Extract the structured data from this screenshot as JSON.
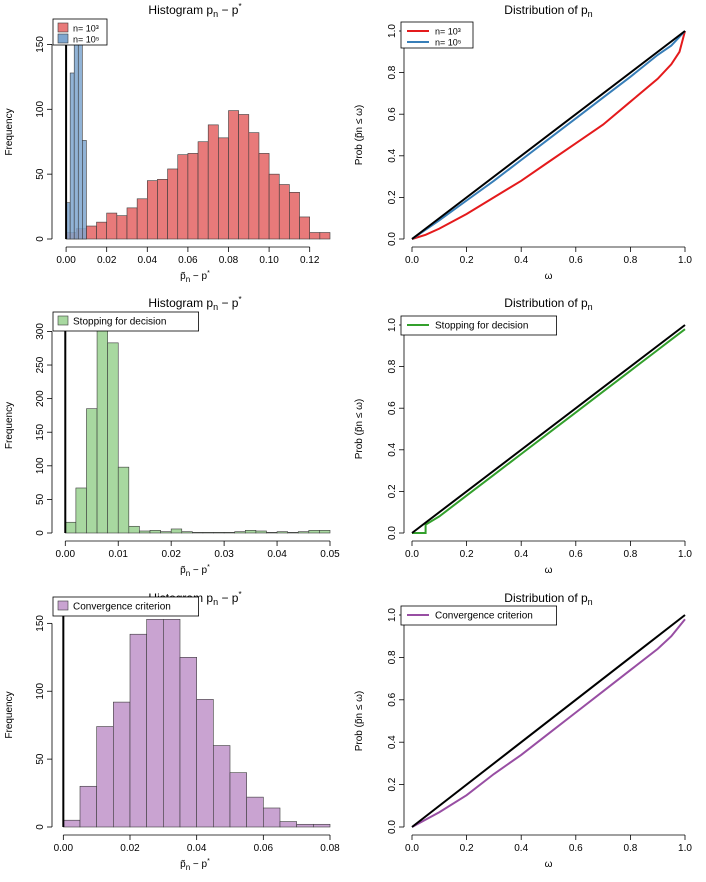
{
  "chart_data": [
    {
      "type": "bar",
      "title_main": "Histogram p",
      "title_sub": "n",
      "title_rest": " − p",
      "title_sup": "*",
      "xlabel": "p̃n − p*",
      "ylabel": "Frequency",
      "xlim": [
        -0.003,
        0.13
      ],
      "ylim": [
        0,
        165
      ],
      "xticks": [
        0.0,
        0.02,
        0.04,
        0.06,
        0.08,
        0.1,
        0.12
      ],
      "xtick_labels": [
        "0.00",
        "0.02",
        "0.04",
        "0.06",
        "0.08",
        "0.10",
        "0.12"
      ],
      "yticks": [
        0,
        50,
        100,
        150
      ],
      "ytick_labels": [
        "0",
        "50",
        "100",
        "150"
      ],
      "legend": [
        "n= 10³",
        "n= 10⁵"
      ],
      "series": [
        {
          "name": "n= 10³",
          "color": "#e87a7a",
          "bin_edges": [
            0.0,
            0.005,
            0.01,
            0.015,
            0.02,
            0.025,
            0.03,
            0.035,
            0.04,
            0.045,
            0.05,
            0.055,
            0.06,
            0.065,
            0.07,
            0.075,
            0.08,
            0.085,
            0.09,
            0.095,
            0.1,
            0.105,
            0.11,
            0.115,
            0.12,
            0.125,
            0.13
          ],
          "values": [
            5,
            8,
            10,
            13,
            20,
            18,
            24,
            31,
            45,
            46,
            54,
            65,
            66,
            75,
            88,
            78,
            99,
            96,
            82,
            66,
            50,
            42,
            36,
            17,
            5,
            5,
            2
          ]
        },
        {
          "name": "n= 10⁵",
          "color": "#7ea6cf",
          "bin_edges": [
            0.0,
            0.002,
            0.004,
            0.006,
            0.008,
            0.01
          ],
          "values": [
            28,
            128,
            155,
            155,
            76
          ]
        }
      ]
    },
    {
      "type": "line",
      "title_main": "Distribution of p",
      "title_sub": "n",
      "xlabel": "ω",
      "ylabel": "Prob (p̃n ≤ ω)",
      "xlim": [
        0,
        1
      ],
      "ylim": [
        0,
        1
      ],
      "xticks": [
        0.0,
        0.2,
        0.4,
        0.6,
        0.8,
        1.0
      ],
      "xtick_labels": [
        "0.0",
        "0.2",
        "0.4",
        "0.6",
        "0.8",
        "1.0"
      ],
      "yticks": [
        0.0,
        0.2,
        0.4,
        0.6,
        0.8,
        1.0
      ],
      "ytick_labels": [
        "0.0",
        "0.2",
        "0.4",
        "0.6",
        "0.8",
        "1.0"
      ],
      "legend": [
        "n= 10³",
        "n= 10⁵"
      ],
      "series": [
        {
          "name": "n= 10³",
          "color": "#e41a1c",
          "x": [
            0,
            0.05,
            0.1,
            0.2,
            0.3,
            0.4,
            0.5,
            0.6,
            0.7,
            0.8,
            0.9,
            0.95,
            0.98,
            1.0
          ],
          "y": [
            0,
            0.02,
            0.05,
            0.12,
            0.2,
            0.28,
            0.37,
            0.46,
            0.55,
            0.66,
            0.77,
            0.84,
            0.9,
            1.0
          ]
        },
        {
          "name": "n= 10⁵",
          "color": "#377eb8",
          "x": [
            0,
            0.1,
            0.2,
            0.3,
            0.4,
            0.5,
            0.6,
            0.7,
            0.8,
            0.9,
            0.95,
            1.0
          ],
          "y": [
            0,
            0.09,
            0.185,
            0.28,
            0.38,
            0.48,
            0.58,
            0.68,
            0.78,
            0.885,
            0.93,
            1.0
          ]
        },
        {
          "name": "",
          "color": "#000000",
          "x": [
            0,
            1
          ],
          "y": [
            0,
            1
          ]
        }
      ]
    },
    {
      "type": "bar",
      "title_main": "Histogram p",
      "title_sub": "n",
      "title_rest": " − p",
      "title_sup": "*",
      "xlabel": "p̃n − p*",
      "ylabel": "Frequency",
      "xlim": [
        -0.001,
        0.05
      ],
      "ylim": [
        0,
        320
      ],
      "xticks": [
        0.0,
        0.01,
        0.02,
        0.03,
        0.04,
        0.05
      ],
      "xtick_labels": [
        "0.00",
        "0.01",
        "0.02",
        "0.03",
        "0.04",
        "0.05"
      ],
      "yticks": [
        0,
        50,
        100,
        150,
        200,
        250,
        300
      ],
      "ytick_labels": [
        "0",
        "50",
        "100",
        "150",
        "200",
        "250",
        "300"
      ],
      "legend": [
        "Stopping for decision"
      ],
      "series": [
        {
          "name": "Stopping for decision",
          "color": "#a8d8a0",
          "bin_edges": [
            0.0,
            0.002,
            0.004,
            0.006,
            0.008,
            0.01,
            0.012,
            0.014,
            0.016,
            0.018,
            0.02,
            0.022,
            0.024,
            0.026,
            0.028,
            0.03,
            0.032,
            0.034,
            0.036,
            0.038,
            0.04,
            0.042,
            0.044,
            0.046,
            0.048,
            0.05
          ],
          "values": [
            16,
            67,
            185,
            318,
            283,
            98,
            10,
            3,
            4,
            2,
            6,
            2,
            1,
            1,
            1,
            1,
            2,
            4,
            3,
            1,
            2,
            1,
            2,
            4,
            4
          ]
        }
      ]
    },
    {
      "type": "line",
      "title_main": "Distribution of p",
      "title_sub": "n",
      "xlabel": "ω",
      "ylabel": "Prob (p̃n ≤ ω)",
      "xlim": [
        0,
        1
      ],
      "ylim": [
        0,
        1
      ],
      "xticks": [
        0.0,
        0.2,
        0.4,
        0.6,
        0.8,
        1.0
      ],
      "xtick_labels": [
        "0.0",
        "0.2",
        "0.4",
        "0.6",
        "0.8",
        "1.0"
      ],
      "yticks": [
        0.0,
        0.2,
        0.4,
        0.6,
        0.8,
        1.0
      ],
      "ytick_labels": [
        "0.0",
        "0.2",
        "0.4",
        "0.6",
        "0.8",
        "1.0"
      ],
      "legend": [
        "Stopping for decision"
      ],
      "series": [
        {
          "name": "Stopping for decision",
          "color": "#33a02c",
          "x": [
            0,
            0.05,
            0.05,
            0.1,
            0.2,
            0.3,
            0.4,
            0.5,
            0.6,
            0.7,
            0.8,
            0.9,
            0.95,
            1.0
          ],
          "y": [
            0,
            0,
            0.04,
            0.08,
            0.18,
            0.28,
            0.38,
            0.48,
            0.58,
            0.68,
            0.78,
            0.88,
            0.93,
            0.98
          ]
        },
        {
          "name": "",
          "color": "#000000",
          "x": [
            0,
            1
          ],
          "y": [
            0,
            1
          ]
        }
      ]
    },
    {
      "type": "bar",
      "title_main": "Histogram p",
      "title_sub": "n",
      "title_rest": " − p",
      "title_sup": "*",
      "xlabel": "p̃n − p*",
      "ylabel": "Frequency",
      "xlim": [
        -0.001,
        0.08
      ],
      "ylim": [
        0,
        165
      ],
      "xticks": [
        0.0,
        0.02,
        0.04,
        0.06,
        0.08
      ],
      "xtick_labels": [
        "0.00",
        "0.02",
        "0.04",
        "0.06",
        "0.08"
      ],
      "yticks": [
        0,
        50,
        100,
        150
      ],
      "ytick_labels": [
        "0",
        "50",
        "100",
        "150"
      ],
      "legend": [
        "Convergence criterion"
      ],
      "series": [
        {
          "name": "Convergence criterion",
          "color": "#c9a3d1",
          "bin_edges": [
            0.0,
            0.005,
            0.01,
            0.015,
            0.02,
            0.025,
            0.03,
            0.035,
            0.04,
            0.045,
            0.05,
            0.055,
            0.06,
            0.065,
            0.07,
            0.075,
            0.08
          ],
          "values": [
            5,
            30,
            74,
            92,
            142,
            153,
            153,
            125,
            94,
            60,
            40,
            22,
            14,
            4,
            2,
            2
          ]
        }
      ]
    },
    {
      "type": "line",
      "title_main": "Distribution of p",
      "title_sub": "n",
      "xlabel": "ω",
      "ylabel": "Prob (p̃n ≤ ω)",
      "xlim": [
        0,
        1
      ],
      "ylim": [
        0,
        1
      ],
      "xticks": [
        0.0,
        0.2,
        0.4,
        0.6,
        0.8,
        1.0
      ],
      "xtick_labels": [
        "0.0",
        "0.2",
        "0.4",
        "0.6",
        "0.8",
        "1.0"
      ],
      "yticks": [
        0.0,
        0.2,
        0.4,
        0.6,
        0.8,
        1.0
      ],
      "ytick_labels": [
        "0.0",
        "0.2",
        "0.4",
        "0.6",
        "0.8",
        "1.0"
      ],
      "legend": [
        "Convergence criterion"
      ],
      "series": [
        {
          "name": "Convergence criterion",
          "color": "#984ea3",
          "x": [
            0,
            0.1,
            0.2,
            0.3,
            0.4,
            0.5,
            0.6,
            0.7,
            0.8,
            0.9,
            0.95,
            1.0
          ],
          "y": [
            0,
            0.07,
            0.15,
            0.25,
            0.34,
            0.44,
            0.54,
            0.64,
            0.74,
            0.84,
            0.9,
            0.98
          ]
        },
        {
          "name": "",
          "color": "#000000",
          "x": [
            0,
            1
          ],
          "y": [
            0,
            1
          ]
        }
      ]
    }
  ]
}
